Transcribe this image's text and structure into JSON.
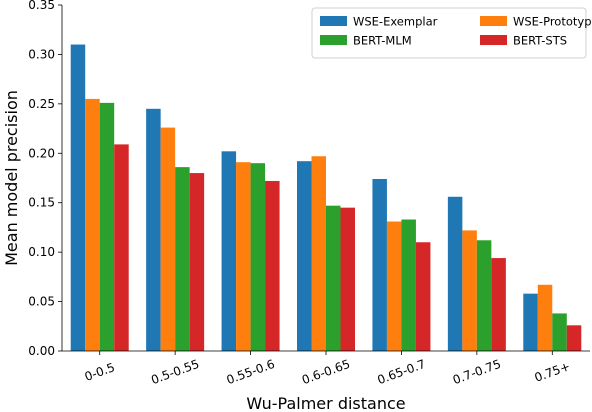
{
  "chart_data": {
    "type": "bar",
    "title": "",
    "xlabel": "Wu-Palmer distance",
    "ylabel": "Mean model precision",
    "ylim": [
      0,
      0.35
    ],
    "yticks": [
      "0.00",
      "0.05",
      "0.10",
      "0.15",
      "0.20",
      "0.25",
      "0.30",
      "0.35"
    ],
    "categories": [
      "0-0.5",
      "0.5-0.55",
      "0.55-0.6",
      "0.6-0.65",
      "0.65-0.7",
      "0.7-0.75",
      "0.75+"
    ],
    "series": [
      {
        "name": "WSE-Exemplar",
        "color": "#1f77b4",
        "values": [
          0.31,
          0.245,
          0.202,
          0.192,
          0.174,
          0.156,
          0.058
        ]
      },
      {
        "name": "WSE-Prototype",
        "color": "#ff7f0e",
        "values": [
          0.255,
          0.226,
          0.191,
          0.197,
          0.131,
          0.122,
          0.067
        ]
      },
      {
        "name": "BERT-MLM",
        "color": "#2ca02c",
        "values": [
          0.251,
          0.186,
          0.19,
          0.147,
          0.133,
          0.112,
          0.038
        ]
      },
      {
        "name": "BERT-STS",
        "color": "#d62728",
        "values": [
          0.209,
          0.18,
          0.172,
          0.145,
          0.11,
          0.094,
          0.026
        ]
      }
    ],
    "legend": {
      "position": "top-right",
      "columns": 2,
      "order": [
        0,
        1,
        2,
        3
      ]
    },
    "grid": false
  }
}
